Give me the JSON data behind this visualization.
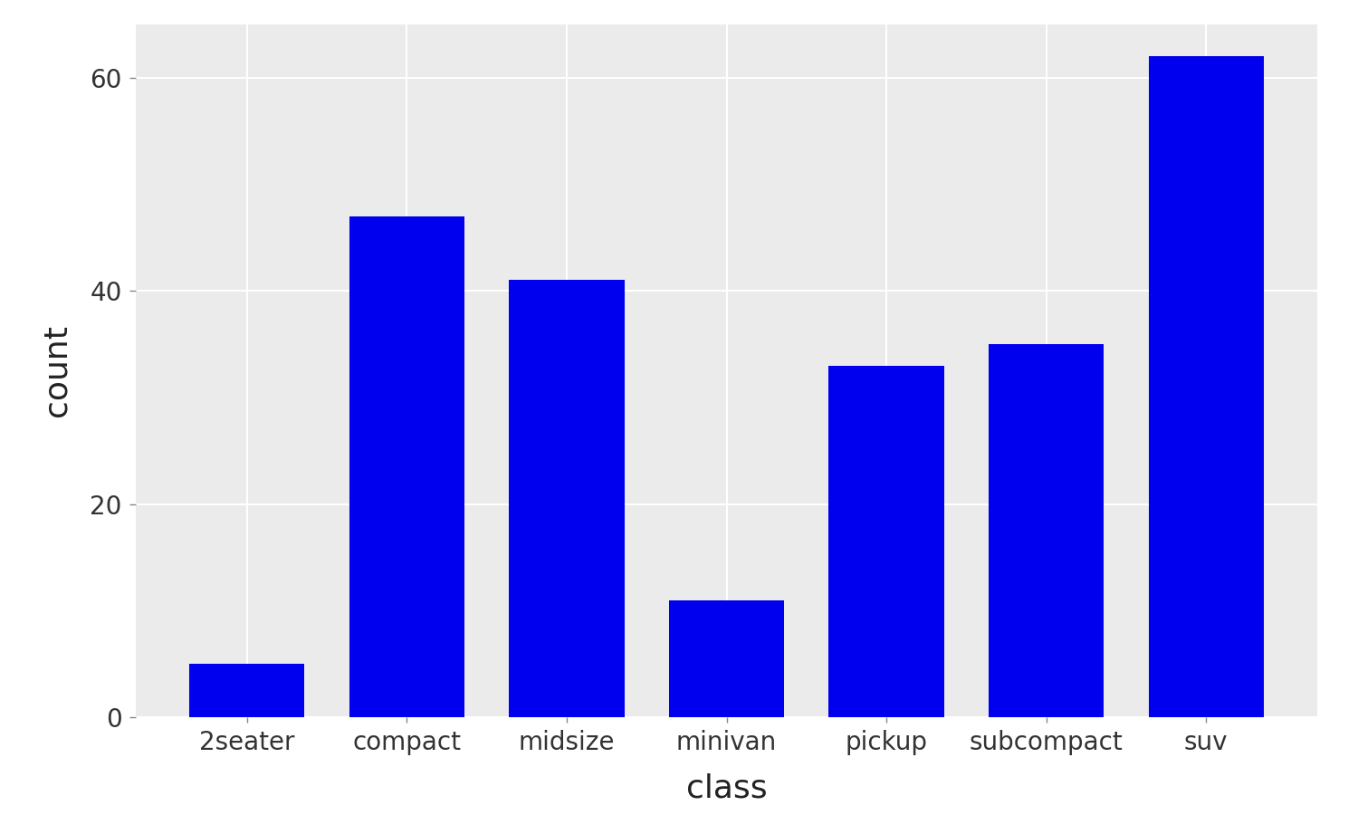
{
  "categories": [
    "2seater",
    "compact",
    "midsize",
    "minivan",
    "pickup",
    "subcompact",
    "suv"
  ],
  "values": [
    5,
    47,
    41,
    11,
    33,
    35,
    62
  ],
  "bar_color": "#0000EE",
  "figure_background": "#FFFFFF",
  "panel_background": "#EBEBEB",
  "grid_color": "#FFFFFF",
  "xlabel": "class",
  "ylabel": "count",
  "xlabel_fontsize": 26,
  "ylabel_fontsize": 26,
  "tick_fontsize": 20,
  "ylim": [
    0,
    65
  ],
  "yticks": [
    0,
    20,
    40,
    60
  ],
  "bar_width": 0.72
}
